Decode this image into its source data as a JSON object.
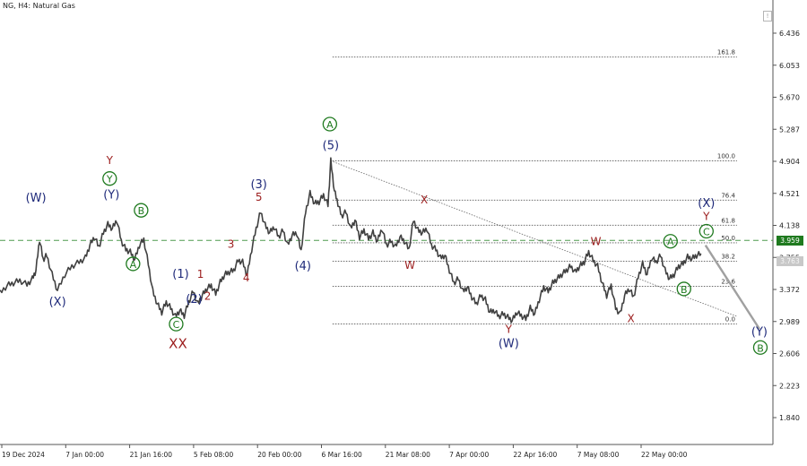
{
  "window": {
    "symbol_title": "NG, H4:  Natural Gas",
    "corner_button": "!"
  },
  "price_tags": {
    "dashed_level": "3.959",
    "current_price": "3.763"
  },
  "colors": {
    "series": "#404040",
    "wave_blue": "#1f2a7a",
    "wave_red": "#9b1c1c",
    "wave_green": "#1f7a1f",
    "projection": "#a0a0a0",
    "dashed_line": "#4f9a4f"
  },
  "chart_data": {
    "type": "line",
    "title": "NG, H4:  Natural Gas",
    "xlabel": "",
    "ylabel": "",
    "ylim": [
      1.5,
      6.7
    ],
    "y_ticks": [
      "6.436",
      "6.053",
      "5.670",
      "5.287",
      "4.904",
      "4.521",
      "4.138",
      "3.755",
      "3.372",
      "2.989",
      "2.606",
      "2.223",
      "1.840"
    ],
    "x_ticks": [
      "19 Dec 2024",
      "7 Jan 00:00",
      "21 Jan 16:00",
      "5 Feb 08:00",
      "20 Feb 00:00",
      "6 Mar 16:00",
      "21 Mar 08:00",
      "7 Apr 00:00",
      "22 Apr 16:00",
      "7 May 08:00",
      "22 May 00:00"
    ],
    "grid": false,
    "x_range": [
      0,
      860
    ],
    "series": [
      {
        "x": [
          0,
          8,
          15,
          22,
          30,
          36,
          40,
          44,
          48,
          52,
          58,
          64,
          72,
          80,
          88,
          95,
          100,
          105,
          110,
          115,
          120,
          125,
          130,
          135,
          140,
          145,
          150,
          155,
          160,
          165,
          170,
          175,
          180,
          185,
          190,
          195,
          200,
          205,
          210,
          215,
          220,
          225,
          230,
          235,
          240,
          245,
          250,
          255,
          260,
          265,
          270,
          275,
          280,
          285,
          290,
          295,
          300,
          305,
          310,
          315,
          320,
          325,
          330,
          335,
          340,
          345,
          350,
          355,
          360,
          365,
          368,
          372,
          376,
          380,
          385,
          390,
          395,
          400,
          405,
          410,
          415,
          420,
          425,
          430,
          435,
          440,
          445,
          450,
          455,
          460,
          465,
          470,
          475,
          480,
          485,
          490,
          495,
          500,
          505,
          510,
          515,
          520,
          525,
          530,
          535,
          540,
          545,
          550,
          555,
          560,
          565,
          570,
          575,
          580,
          585,
          590,
          595,
          600,
          605,
          610,
          615,
          620,
          625,
          630,
          635,
          640,
          645,
          650,
          655,
          660,
          665,
          670,
          675,
          680,
          685,
          690,
          695,
          700,
          705,
          710,
          715,
          720,
          725,
          730,
          735,
          740,
          745,
          750,
          755,
          760,
          765,
          770,
          775,
          780
        ],
        "y": [
          3.33,
          3.42,
          3.45,
          3.48,
          3.43,
          3.5,
          3.6,
          3.97,
          3.73,
          3.78,
          3.55,
          3.36,
          3.55,
          3.65,
          3.7,
          3.75,
          3.9,
          4.0,
          3.88,
          4.05,
          4.15,
          4.1,
          4.2,
          3.95,
          3.85,
          3.82,
          3.73,
          3.9,
          3.97,
          3.68,
          3.35,
          3.2,
          3.1,
          3.22,
          3.15,
          3.05,
          3.12,
          3.06,
          3.22,
          3.35,
          3.2,
          3.3,
          3.38,
          3.42,
          3.32,
          3.46,
          3.55,
          3.58,
          3.6,
          3.72,
          3.7,
          3.54,
          3.85,
          4.1,
          4.3,
          4.14,
          4.05,
          4.12,
          4.0,
          4.08,
          3.9,
          4.02,
          4.05,
          3.83,
          4.3,
          4.52,
          4.4,
          4.42,
          4.5,
          4.38,
          4.91,
          4.55,
          4.4,
          4.25,
          4.3,
          4.1,
          4.2,
          4.0,
          4.08,
          3.98,
          4.05,
          3.95,
          4.1,
          3.9,
          3.95,
          3.88,
          4.0,
          3.95,
          3.85,
          4.2,
          4.08,
          4.05,
          4.1,
          3.9,
          3.85,
          3.75,
          3.78,
          3.6,
          3.45,
          3.5,
          3.35,
          3.4,
          3.28,
          3.2,
          3.3,
          3.25,
          3.1,
          3.12,
          3.05,
          3.08,
          3.04,
          3.0,
          3.1,
          3.06,
          3.02,
          3.15,
          3.08,
          3.25,
          3.4,
          3.35,
          3.45,
          3.5,
          3.55,
          3.6,
          3.65,
          3.58,
          3.65,
          3.7,
          3.82,
          3.72,
          3.65,
          3.45,
          3.3,
          3.42,
          3.15,
          3.08,
          3.3,
          3.38,
          3.28,
          3.52,
          3.68,
          3.55,
          3.75,
          3.7,
          3.78,
          3.6,
          3.5,
          3.55,
          3.65,
          3.68,
          3.76,
          3.74,
          3.78,
          3.8
        ]
      }
    ],
    "h_lines": [
      {
        "label": "161.8",
        "y": 6.15,
        "x_start": 370,
        "x_end": 820
      },
      {
        "label": "100.0",
        "y": 4.91,
        "x_start": 370,
        "x_end": 820
      },
      {
        "label": "76.4",
        "y": 4.44,
        "x_start": 370,
        "x_end": 820
      },
      {
        "label": "61.8",
        "y": 4.14,
        "x_start": 370,
        "x_end": 820
      },
      {
        "label": "50.0",
        "y": 3.93,
        "x_start": 370,
        "x_end": 820
      },
      {
        "label": "38.2",
        "y": 3.71,
        "x_start": 370,
        "x_end": 820
      },
      {
        "label": "23.6",
        "y": 3.41,
        "x_start": 370,
        "x_end": 820
      },
      {
        "label": "0.0",
        "y": 2.96,
        "x_start": 370,
        "x_end": 820
      }
    ],
    "dashed_level": {
      "y": 3.959
    },
    "trend_line": {
      "x1": 368,
      "y1": 4.91,
      "x2": 820,
      "y2": 3.05
    },
    "projection": [
      {
        "x": 785,
        "y": 3.9
      },
      {
        "x": 845,
        "y": 2.9
      }
    ],
    "annotations": [
      {
        "text": "(W)",
        "x": 40,
        "y": 4.42,
        "color": "blue"
      },
      {
        "text": "(X)",
        "x": 64,
        "y": 3.18,
        "color": "blue"
      },
      {
        "text": "Y",
        "x": 122,
        "y": 4.87,
        "color": "red"
      },
      {
        "text": "Y",
        "x": 122,
        "y": 4.65,
        "color": "green",
        "circled": true
      },
      {
        "text": "(Y)",
        "x": 124,
        "y": 4.46,
        "color": "blue"
      },
      {
        "text": "B",
        "x": 157,
        "y": 4.27,
        "color": "green",
        "circled": true
      },
      {
        "text": "A",
        "x": 148,
        "y": 3.63,
        "color": "green",
        "circled": true
      },
      {
        "text": "C",
        "x": 196,
        "y": 2.91,
        "color": "green",
        "circled": true
      },
      {
        "text": "XX",
        "x": 198,
        "y": 2.67,
        "color": "red"
      },
      {
        "text": "(1)",
        "x": 201,
        "y": 3.51,
        "color": "blue"
      },
      {
        "text": "(2)",
        "x": 216,
        "y": 3.21,
        "color": "blue"
      },
      {
        "text": "1",
        "x": 223,
        "y": 3.51,
        "color": "red"
      },
      {
        "text": "2",
        "x": 231,
        "y": 3.25,
        "color": "red"
      },
      {
        "text": "3",
        "x": 257,
        "y": 3.87,
        "color": "red"
      },
      {
        "text": "4",
        "x": 274,
        "y": 3.47,
        "color": "red"
      },
      {
        "text": "(3)",
        "x": 288,
        "y": 4.58,
        "color": "blue"
      },
      {
        "text": "5",
        "x": 288,
        "y": 4.43,
        "color": "red"
      },
      {
        "text": "(4)",
        "x": 337,
        "y": 3.61,
        "color": "blue"
      },
      {
        "text": "A",
        "x": 367,
        "y": 5.3,
        "color": "green",
        "circled": true
      },
      {
        "text": "(5)",
        "x": 368,
        "y": 5.05,
        "color": "blue"
      },
      {
        "text": "X",
        "x": 472,
        "y": 4.4,
        "color": "red"
      },
      {
        "text": "W",
        "x": 456,
        "y": 3.62,
        "color": "red"
      },
      {
        "text": "Y",
        "x": 566,
        "y": 2.85,
        "color": "red"
      },
      {
        "text": "(W)",
        "x": 566,
        "y": 2.68,
        "color": "blue"
      },
      {
        "text": "W",
        "x": 663,
        "y": 3.9,
        "color": "red"
      },
      {
        "text": "X",
        "x": 702,
        "y": 2.98,
        "color": "red"
      },
      {
        "text": "A",
        "x": 746,
        "y": 3.9,
        "color": "green",
        "circled": true
      },
      {
        "text": "B",
        "x": 761,
        "y": 3.33,
        "color": "green",
        "circled": true
      },
      {
        "text": "(X)",
        "x": 786,
        "y": 4.36,
        "color": "blue"
      },
      {
        "text": "Y",
        "x": 786,
        "y": 4.2,
        "color": "red"
      },
      {
        "text": "C",
        "x": 786,
        "y": 4.02,
        "color": "green",
        "circled": true
      },
      {
        "text": "(Y)",
        "x": 845,
        "y": 2.82,
        "color": "blue"
      },
      {
        "text": "B",
        "x": 846,
        "y": 2.63,
        "color": "green",
        "circled": true
      }
    ]
  }
}
